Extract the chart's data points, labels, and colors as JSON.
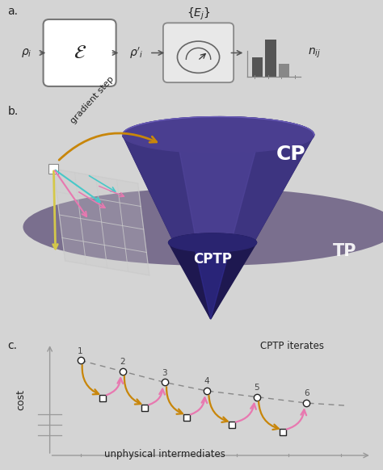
{
  "bg_color": "#d4d4d4",
  "cone_dark": "#2d2460",
  "cone_mid": "#3d3480",
  "cone_light": "#5548a0",
  "cone_top": "#4a3e90",
  "cone_rim": "#6a5cb8",
  "cptp_dark": "#1e1850",
  "cptp_mid": "#2a2470",
  "cptp_light": "#3530a0",
  "disk_color": "#6b5e8a",
  "disk_edge": "#7a6e9a",
  "orange_color": "#c8860a",
  "pink_color": "#e878b0",
  "yellow_color": "#d4c84a",
  "cyan_color": "#48c8c8",
  "white_color": "#ffffff",
  "text_dark": "#222222",
  "text_gray": "#444444",
  "arrow_gray": "#555555",
  "grid_color": "#cccccc",
  "panel_labels": [
    "a.",
    "b.",
    "c."
  ],
  "cp_label": "CP",
  "cptp_label": "CPTP",
  "tp_label": "TP",
  "gradient_step_label": "gradient step",
  "cptp_iterates_label": "CPTP iterates",
  "unphysical_label": "unphysical intermediates",
  "cost_label": "cost",
  "meas_box_color": "#e8e8e8",
  "bar_color": "#555555",
  "bar_color2": "#888888"
}
